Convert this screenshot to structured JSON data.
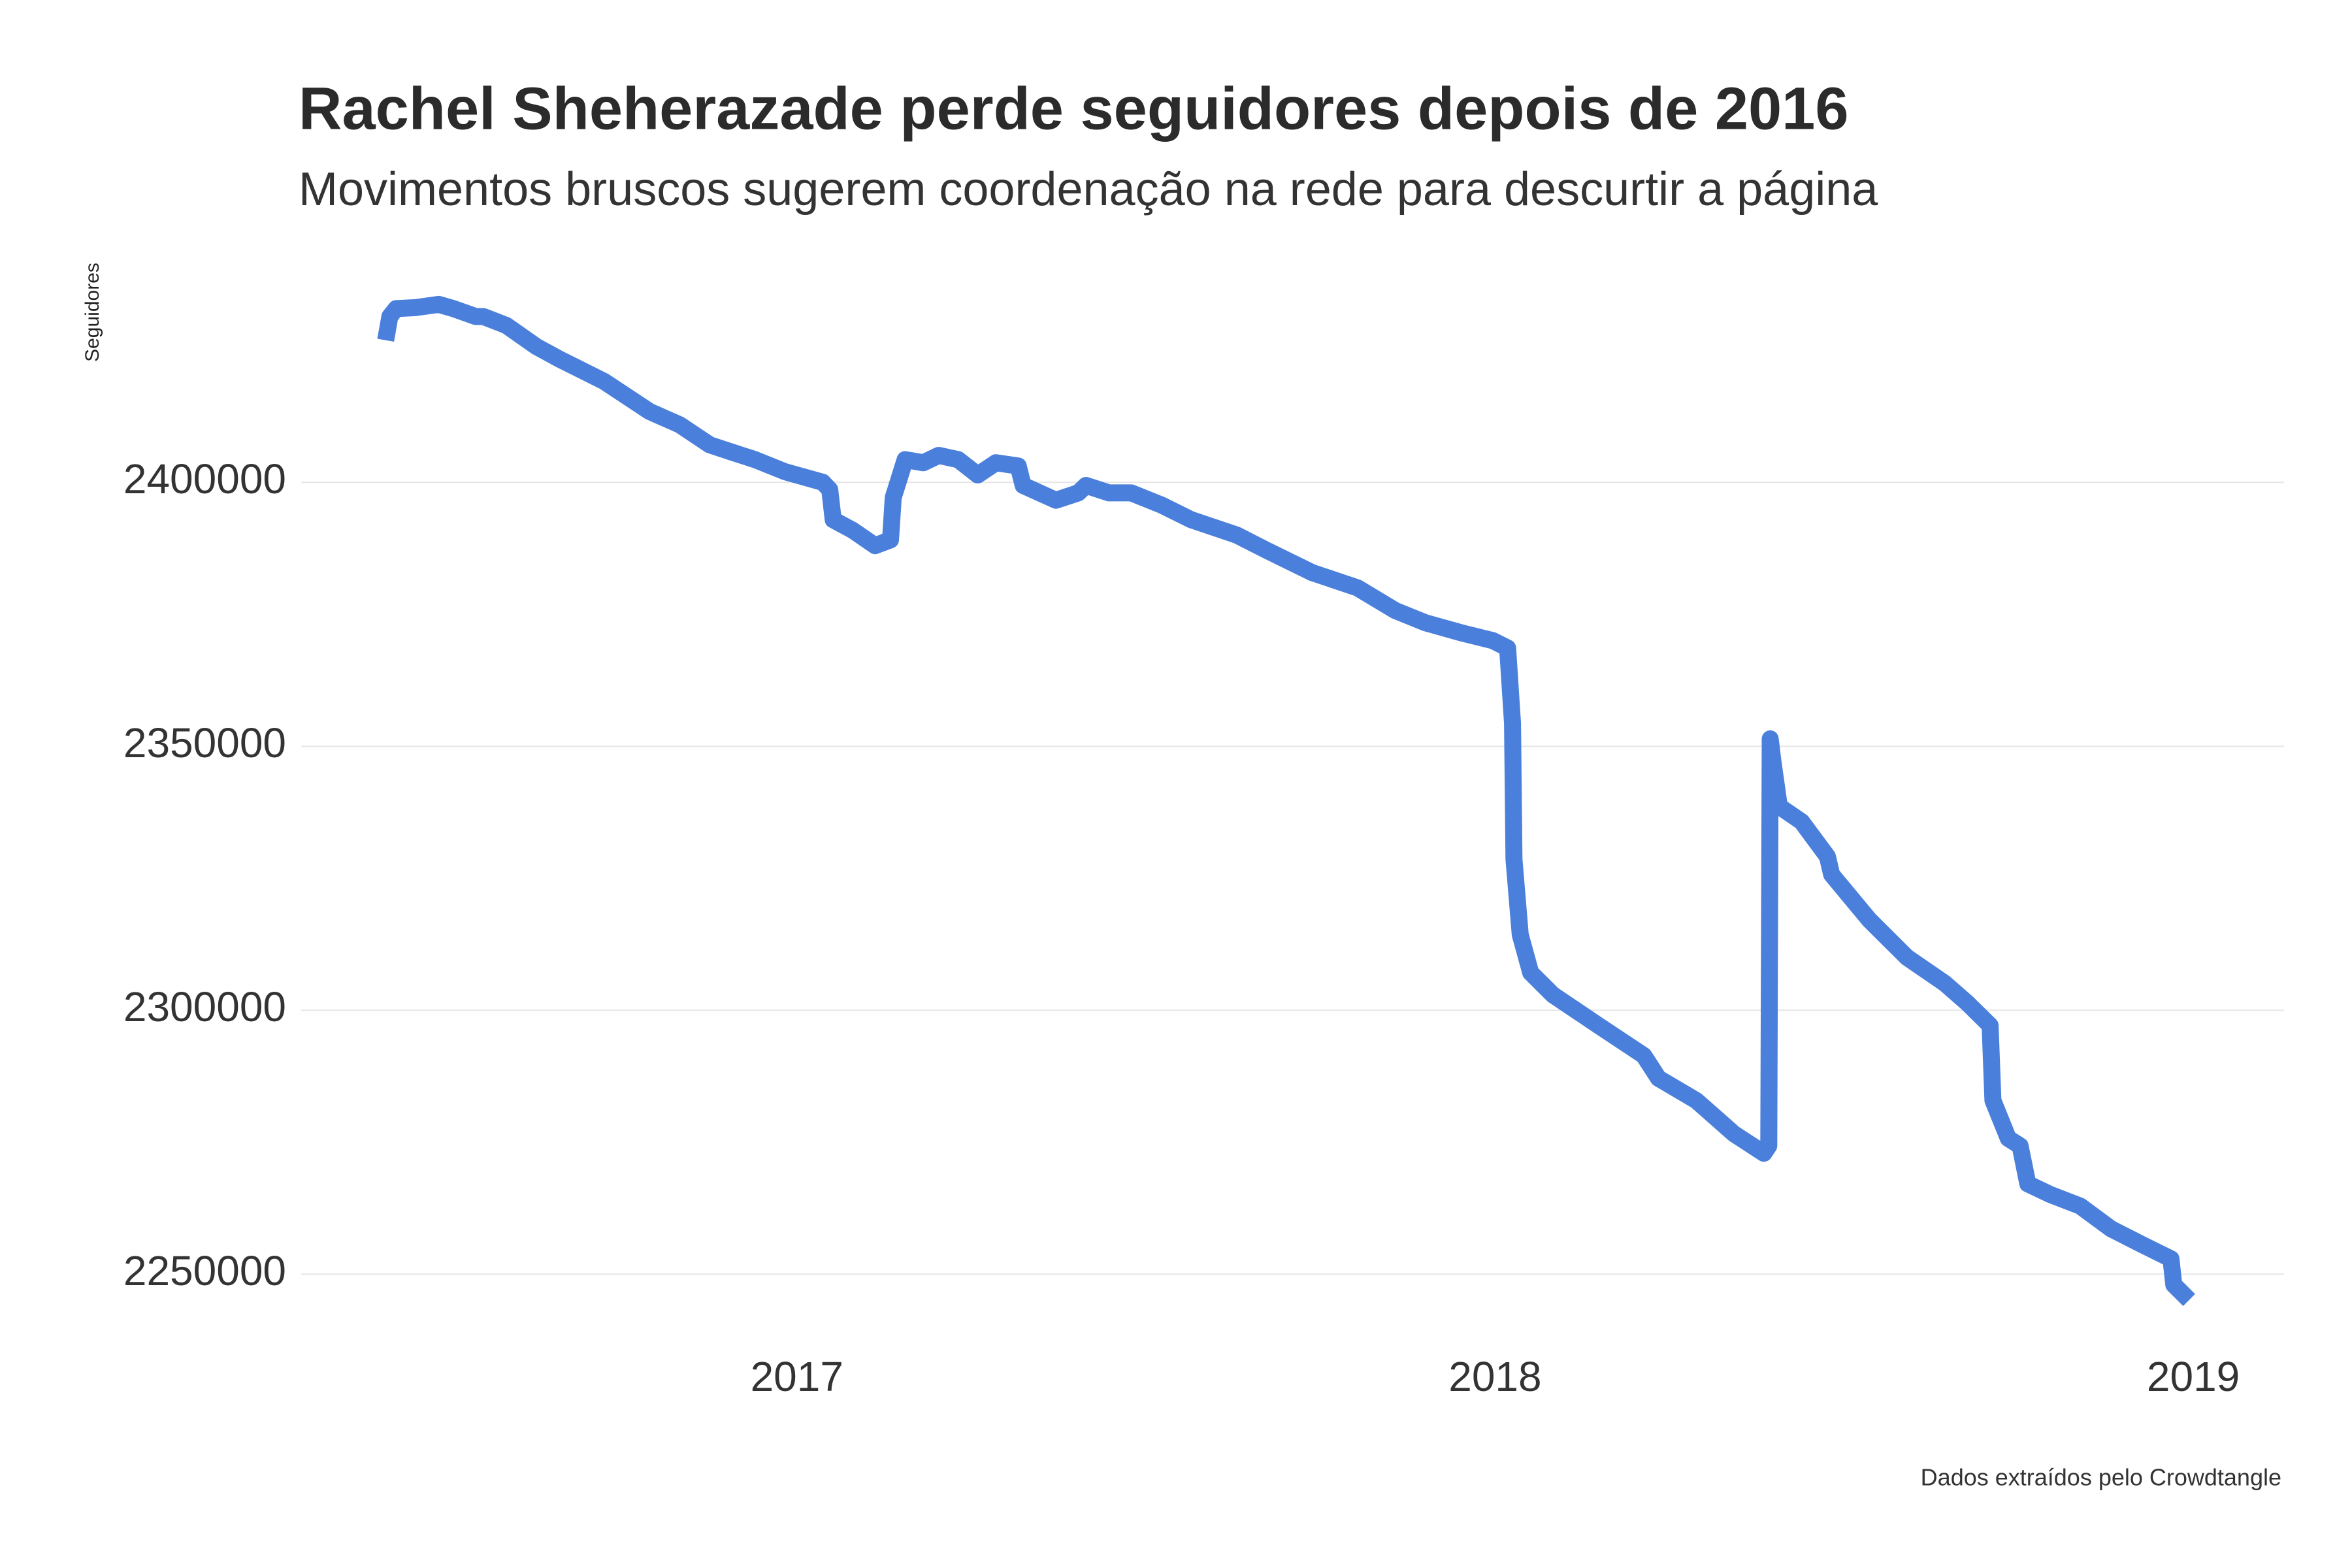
{
  "chart_data": {
    "type": "line",
    "title": "Rachel Sheherazade perde seguidores depois de 2016",
    "subtitle": "Movimentos bruscos sugerem coordenação na rede para descurtir a página",
    "y_label": "Seguidores",
    "caption": "Dados extraídos pelo Crowdtangle",
    "grid": true,
    "xlim": [
      2016.29,
      2019.13
    ],
    "xticks": [
      2017,
      2018,
      2019
    ],
    "ylim": [
      2240000,
      2440000
    ],
    "yticks": [
      2250000,
      2300000,
      2350000,
      2400000
    ],
    "x": [
      2016.411,
      2016.417,
      2016.426,
      2016.454,
      2016.487,
      2016.508,
      2016.54,
      2016.551,
      2016.584,
      2016.627,
      2016.659,
      2016.724,
      2016.789,
      2016.832,
      2016.875,
      2016.907,
      2016.94,
      2016.983,
      2017.037,
      2017.047,
      2017.052,
      2017.08,
      2017.112,
      2017.134,
      2017.138,
      2017.155,
      2017.181,
      2017.203,
      2017.231,
      2017.259,
      2017.285,
      2017.317,
      2017.324,
      2017.371,
      2017.403,
      2017.414,
      2017.447,
      2017.479,
      2017.522,
      2017.565,
      2017.63,
      2017.673,
      2017.738,
      2017.803,
      2017.857,
      2017.9,
      2017.954,
      2017.997,
      2018.018,
      2018.025,
      2018.027,
      2018.036,
      2018.051,
      2018.083,
      2018.148,
      2018.213,
      2018.234,
      2018.288,
      2018.342,
      2018.385,
      2018.392,
      2018.394,
      2018.398,
      2018.407,
      2018.439,
      2018.476,
      2018.482,
      2018.536,
      2018.59,
      2018.644,
      2018.676,
      2018.709,
      2018.713,
      2018.735,
      2018.752,
      2018.763,
      2018.795,
      2018.838,
      2018.882,
      2018.925,
      2018.968,
      2018.972,
      2018.994
    ],
    "series": [
      {
        "name": "Seguidores",
        "color": "#4a7fdb",
        "values": [
          2426900,
          2431400,
          2432900,
          2433100,
          2433700,
          2432900,
          2431400,
          2431400,
          2429700,
          2425700,
          2423400,
          2419100,
          2413400,
          2410900,
          2407100,
          2405700,
          2404300,
          2402000,
          2400000,
          2398600,
          2392900,
          2390900,
          2388000,
          2389100,
          2397100,
          2404300,
          2403700,
          2405100,
          2404300,
          2401400,
          2403700,
          2403100,
          2399400,
          2396600,
          2398000,
          2399400,
          2398000,
          2398000,
          2395700,
          2392900,
          2390000,
          2387100,
          2382900,
          2380000,
          2375700,
          2373400,
          2371400,
          2370000,
          2368600,
          2354300,
          2328600,
          2314300,
          2307100,
          2302900,
          2297100,
          2291400,
          2287100,
          2282900,
          2276600,
          2272900,
          2274300,
          2351400,
          2347100,
          2338600,
          2335700,
          2329100,
          2325700,
          2317100,
          2310000,
          2305100,
          2301400,
          2297100,
          2282900,
          2275700,
          2274300,
          2267100,
          2265100,
          2262900,
          2258600,
          2255700,
          2252900,
          2248000,
          2245100
        ]
      }
    ]
  }
}
